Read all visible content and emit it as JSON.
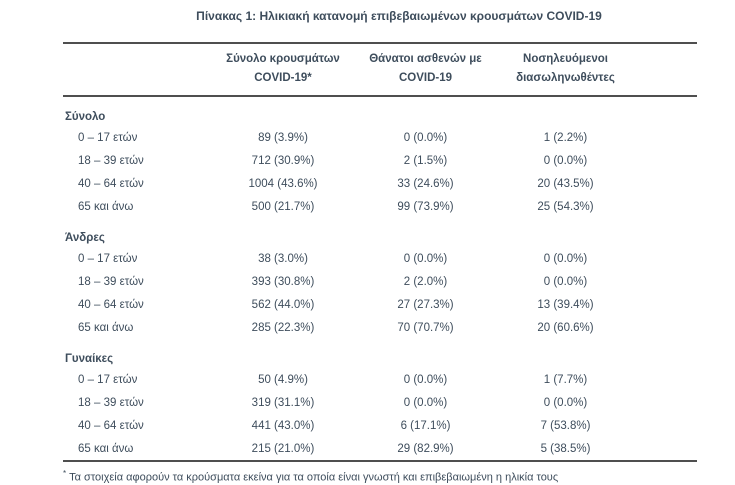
{
  "page": {
    "background": "#ffffff",
    "text_color": "#3e4d5c",
    "rule_color": "#4f4f4f"
  },
  "title": "Πίνακας 1: Ηλικιακή κατανομή επιβεβαιωμένων κρουσμάτων COVID-19",
  "table": {
    "columns": [
      {
        "lines": [
          "Σύνολο κρουσμάτων",
          "COVID-19*"
        ]
      },
      {
        "lines": [
          "Θάνατοι ασθενών με",
          "COVID-19"
        ]
      },
      {
        "lines": [
          "Νοσηλευόμενοι",
          "διασωληνωθέντες"
        ]
      }
    ],
    "sections": [
      {
        "name": "Σύνολο",
        "rows": [
          {
            "label": "0 – 17 ετών",
            "values": [
              "89 (3.9%)",
              "0 (0.0%)",
              "1 (2.2%)"
            ]
          },
          {
            "label": "18 – 39 ετών",
            "values": [
              "712 (30.9%)",
              "2 (1.5%)",
              "0 (0.0%)"
            ]
          },
          {
            "label": "40 – 64 ετών",
            "values": [
              "1004 (43.6%)",
              "33 (24.6%)",
              "20 (43.5%)"
            ]
          },
          {
            "label": "65 και άνω",
            "values": [
              "500 (21.7%)",
              "99 (73.9%)",
              "25 (54.3%)"
            ]
          }
        ]
      },
      {
        "name": "Άνδρες",
        "rows": [
          {
            "label": "0 – 17 ετών",
            "values": [
              "38 (3.0%)",
              "0 (0.0%)",
              "0 (0.0%)"
            ]
          },
          {
            "label": "18 – 39 ετών",
            "values": [
              "393 (30.8%)",
              "2 (2.0%)",
              "0 (0.0%)"
            ]
          },
          {
            "label": "40 – 64 ετών",
            "values": [
              "562 (44.0%)",
              "27 (27.3%)",
              "13 (39.4%)"
            ]
          },
          {
            "label": "65 και άνω",
            "values": [
              "285 (22.3%)",
              "70 (70.7%)",
              "20 (60.6%)"
            ]
          }
        ]
      },
      {
        "name": "Γυναίκες",
        "rows": [
          {
            "label": "0 – 17 ετών",
            "values": [
              "50 (4.9%)",
              "0 (0.0%)",
              "1 (7.7%)"
            ]
          },
          {
            "label": "18 – 39 ετών",
            "values": [
              "319 (31.1%)",
              "0 (0.0%)",
              "0 (0.0%)"
            ]
          },
          {
            "label": "40 – 64 ετών",
            "values": [
              "441 (43.0%)",
              "6 (17.1%)",
              "7 (53.8%)"
            ]
          },
          {
            "label": "65 και άνω",
            "values": [
              "215 (21.0%)",
              "29 (82.9%)",
              "5 (38.5%)"
            ]
          }
        ]
      }
    ],
    "footnote_marker": "*",
    "footnote": "Τα στοιχεία αφορούν τα κρούσματα εκείνα για τα οποία είναι γνωστή και επιβεβαιωμένη η ηλικία τους"
  }
}
